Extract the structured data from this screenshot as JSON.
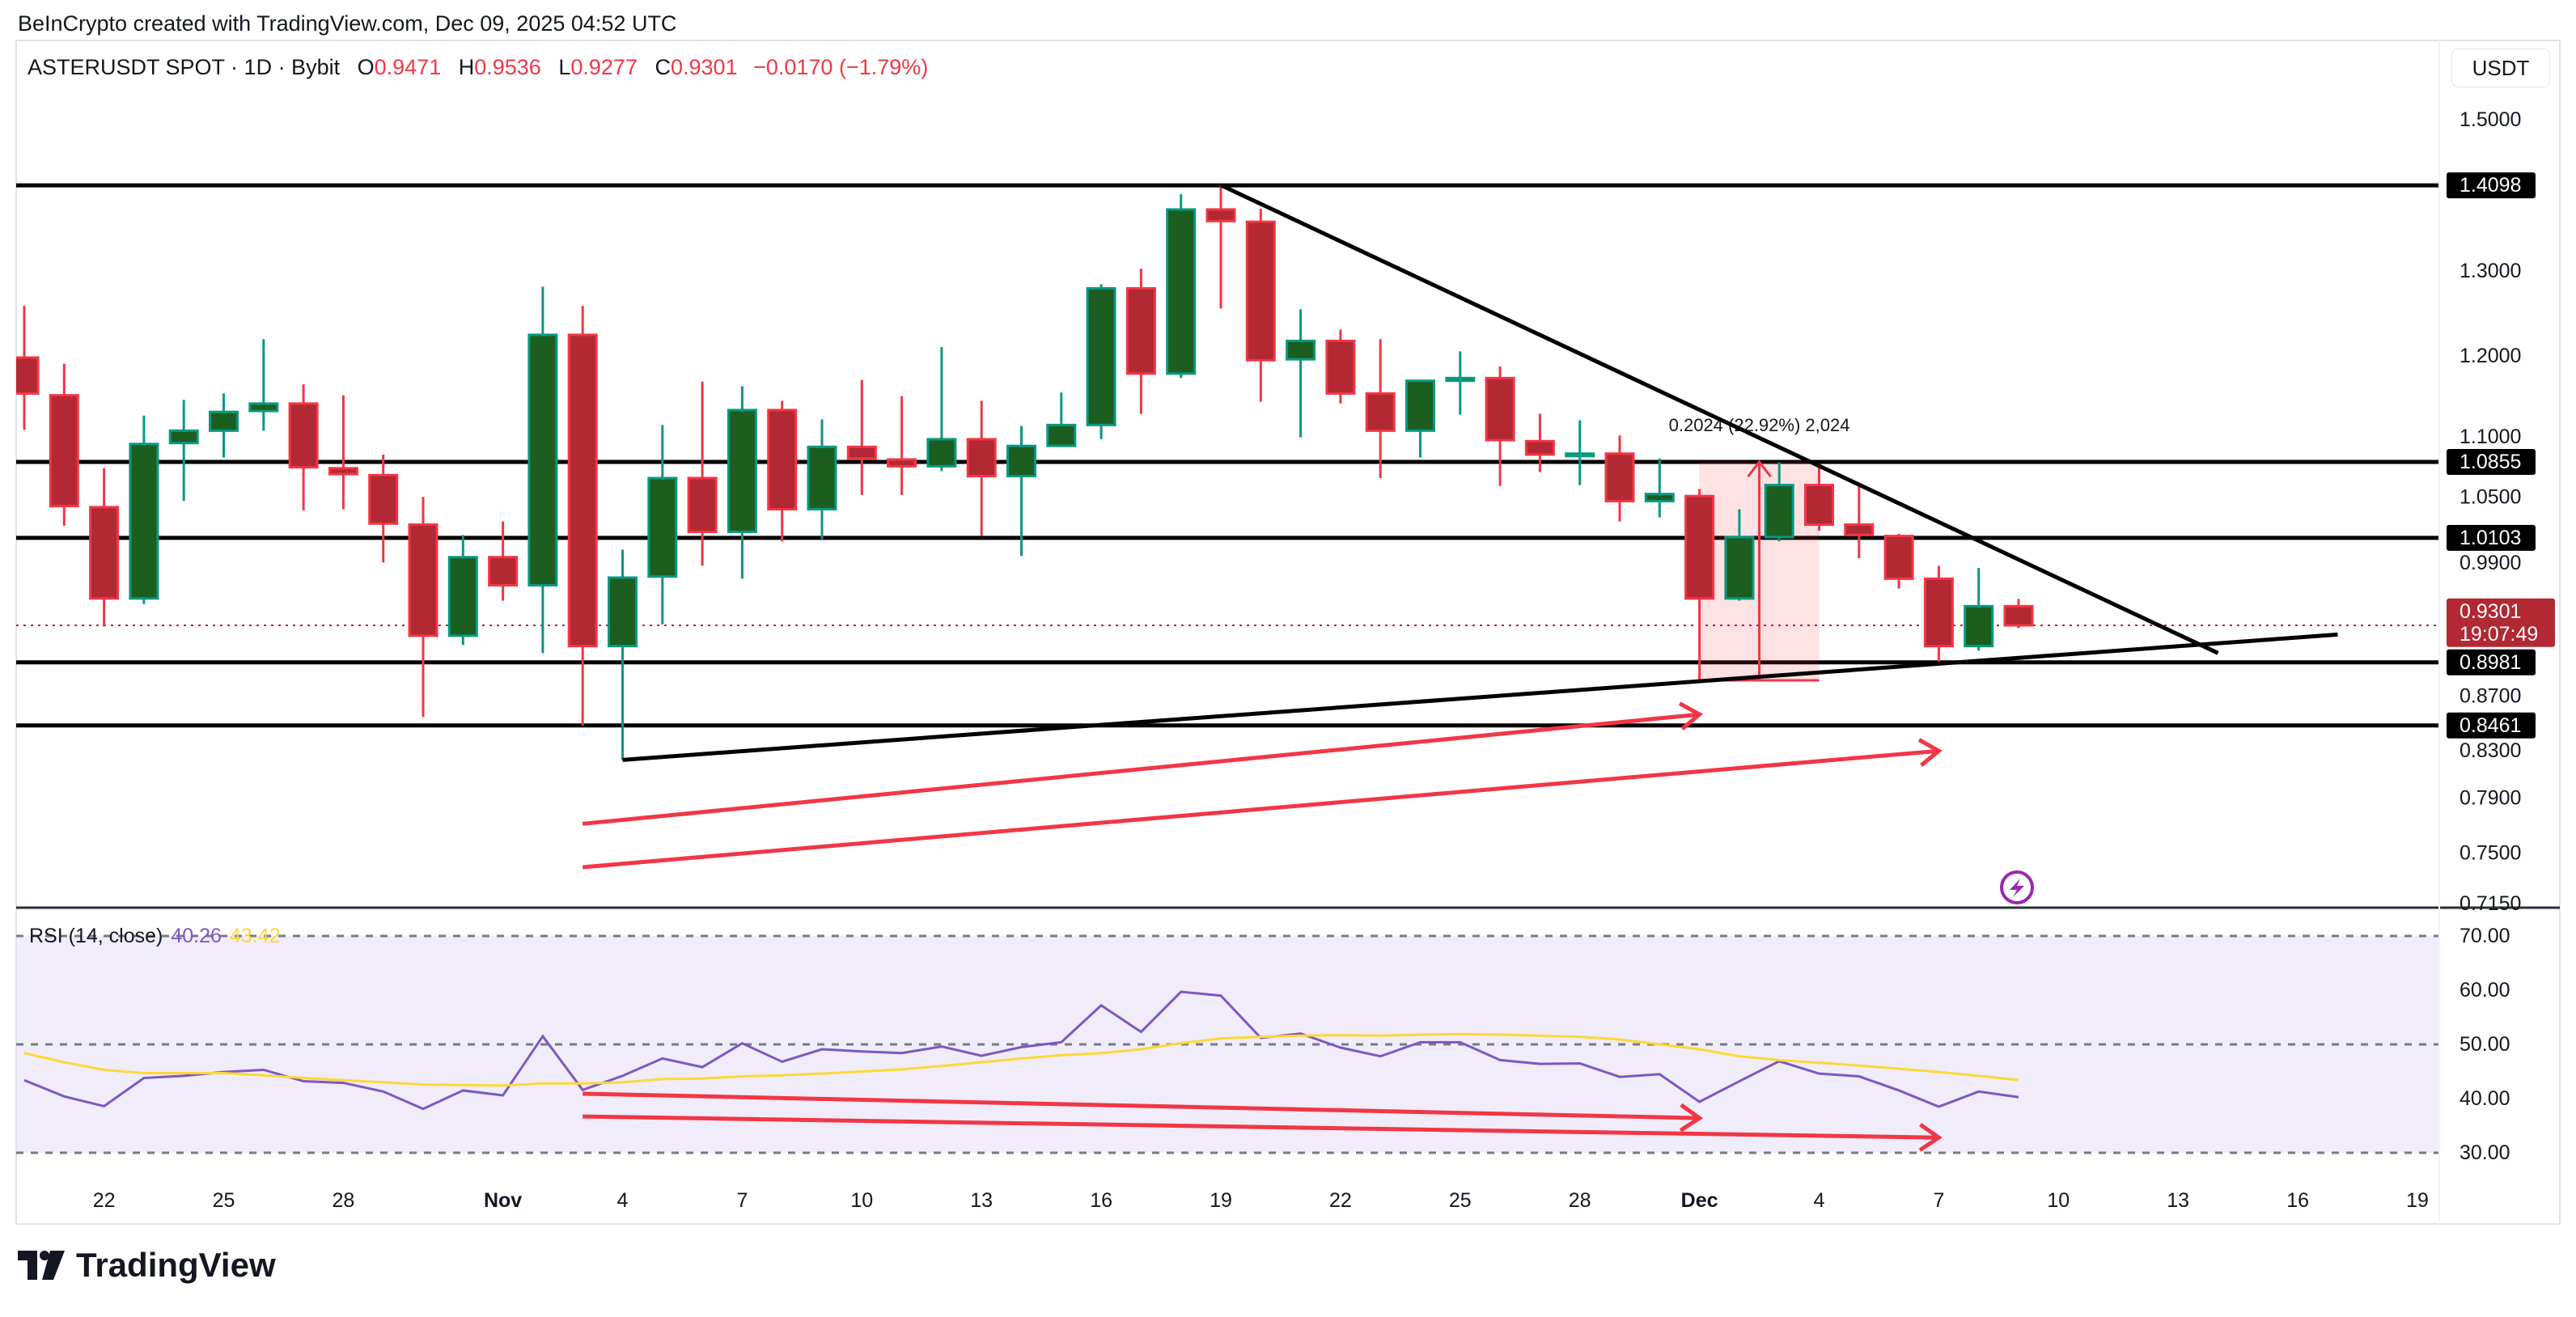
{
  "credit": "BeInCrypto created with TradingView.com, Dec 09, 2025 04:52 UTC",
  "legend": {
    "symbol": "ASTERUSDT SPOT · 1D · Bybit",
    "o_label": "O",
    "o": "0.9471",
    "h_label": "H",
    "h": "0.9536",
    "l_label": "L",
    "l": "0.9277",
    "c_label": "C",
    "c": "0.9301",
    "change": "−0.0170 (−1.79%)"
  },
  "currency_button": "USDT",
  "rsi_legend": {
    "label": "RSI (14, close)",
    "rsi": "40.26",
    "ma": "43.42"
  },
  "logo_text": "TradingView",
  "colors": {
    "up_body": "#1b5e20",
    "up_border": "#089981",
    "down_body": "#b22833",
    "down_border": "#f23645",
    "rsi": "#7e57c2",
    "rsi_ma": "#fdd835",
    "arrow": "#f23645",
    "rsi_band": "#f0ecf9",
    "alert_icon": "#9c27b0"
  },
  "icons": {
    "alert": "lightning-icon",
    "logo": "tradingview-logo-icon"
  },
  "chart_data": [
    {
      "type": "candlestick",
      "title": "ASTERUSDT SPOT · 1D · Bybit",
      "y_scale": "log",
      "ylim": [
        0.715,
        1.5
      ],
      "xlim": [
        "2025-10-20",
        "2025-12-21"
      ],
      "y_ticks": [
        "1.5000",
        "1.3000",
        "1.2000",
        "1.1000",
        "1.0500",
        "0.9900",
        "0.8700",
        "0.8300",
        "0.7900",
        "0.7500",
        "0.7150"
      ],
      "x_ticks": [
        {
          "date": "2025-10-22",
          "label": "22"
        },
        {
          "date": "2025-10-25",
          "label": "25"
        },
        {
          "date": "2025-10-28",
          "label": "28"
        },
        {
          "date": "2025-11-01",
          "label": "Nov"
        },
        {
          "date": "2025-11-04",
          "label": "4"
        },
        {
          "date": "2025-11-07",
          "label": "7"
        },
        {
          "date": "2025-11-10",
          "label": "10"
        },
        {
          "date": "2025-11-13",
          "label": "13"
        },
        {
          "date": "2025-11-16",
          "label": "16"
        },
        {
          "date": "2025-11-19",
          "label": "19"
        },
        {
          "date": "2025-11-22",
          "label": "22"
        },
        {
          "date": "2025-11-25",
          "label": "25"
        },
        {
          "date": "2025-11-28",
          "label": "28"
        },
        {
          "date": "2025-12-01",
          "label": "Dec"
        },
        {
          "date": "2025-12-04",
          "label": "4"
        },
        {
          "date": "2025-12-07",
          "label": "7"
        },
        {
          "date": "2025-12-10",
          "label": "10"
        },
        {
          "date": "2025-12-13",
          "label": "13"
        },
        {
          "date": "2025-12-16",
          "label": "16"
        },
        {
          "date": "2025-12-19",
          "label": "19"
        }
      ],
      "candles_columns": [
        "date",
        "open",
        "high",
        "low",
        "close"
      ],
      "candles": [
        [
          "2025-10-20",
          1.198,
          1.258,
          1.119,
          1.158
        ],
        [
          "2025-10-21",
          1.156,
          1.191,
          1.022,
          1.041
        ],
        [
          "2025-10-22",
          1.04,
          1.079,
          0.929,
          0.954
        ],
        [
          "2025-10-23",
          0.954,
          1.134,
          0.949,
          1.104
        ],
        [
          "2025-10-24",
          1.105,
          1.151,
          1.046,
          1.118
        ],
        [
          "2025-10-25",
          1.118,
          1.158,
          1.09,
          1.138
        ],
        [
          "2025-10-26",
          1.139,
          1.219,
          1.118,
          1.147
        ],
        [
          "2025-10-27",
          1.147,
          1.168,
          1.037,
          1.08
        ],
        [
          "2025-10-28",
          1.079,
          1.156,
          1.038,
          1.073
        ],
        [
          "2025-10-29",
          1.072,
          1.093,
          0.987,
          1.024
        ],
        [
          "2025-10-30",
          1.023,
          1.05,
          0.853,
          0.921
        ],
        [
          "2025-10-31",
          0.921,
          1.013,
          0.913,
          0.992
        ],
        [
          "2025-11-01",
          0.992,
          1.026,
          0.952,
          0.966
        ],
        [
          "2025-11-02",
          0.966,
          1.281,
          0.906,
          1.224
        ],
        [
          "2025-11-03",
          1.224,
          1.258,
          0.846,
          0.912
        ],
        [
          "2025-11-04",
          0.912,
          0.999,
          0.819,
          0.973
        ],
        [
          "2025-11-05",
          0.974,
          1.124,
          0.931,
          1.069
        ],
        [
          "2025-11-06",
          1.069,
          1.171,
          0.984,
          1.016
        ],
        [
          "2025-11-07",
          1.016,
          1.166,
          0.972,
          1.14
        ],
        [
          "2025-11-08",
          1.14,
          1.15,
          1.007,
          1.038
        ],
        [
          "2025-11-09",
          1.038,
          1.13,
          1.009,
          1.101
        ],
        [
          "2025-11-10",
          1.101,
          1.173,
          1.052,
          1.089
        ],
        [
          "2025-11-11",
          1.088,
          1.155,
          1.052,
          1.081
        ],
        [
          "2025-11-12",
          1.081,
          1.21,
          1.076,
          1.109
        ],
        [
          "2025-11-13",
          1.109,
          1.15,
          1.012,
          1.071
        ],
        [
          "2025-11-14",
          1.071,
          1.123,
          0.993,
          1.102
        ],
        [
          "2025-11-15",
          1.102,
          1.159,
          1.101,
          1.124
        ],
        [
          "2025-11-16",
          1.124,
          1.284,
          1.109,
          1.279
        ],
        [
          "2025-11-17",
          1.279,
          1.303,
          1.136,
          1.18
        ],
        [
          "2025-11-18",
          1.18,
          1.398,
          1.175,
          1.378
        ],
        [
          "2025-11-19",
          1.378,
          1.4098,
          1.255,
          1.363
        ],
        [
          "2025-11-20",
          1.362,
          1.379,
          1.149,
          1.195
        ],
        [
          "2025-11-21",
          1.196,
          1.254,
          1.111,
          1.217
        ],
        [
          "2025-11-22",
          1.217,
          1.23,
          1.147,
          1.158
        ],
        [
          "2025-11-23",
          1.158,
          1.219,
          1.069,
          1.118
        ],
        [
          "2025-11-24",
          1.118,
          1.173,
          1.09,
          1.172
        ],
        [
          "2025-11-25",
          1.172,
          1.205,
          1.135,
          1.175
        ],
        [
          "2025-11-26",
          1.175,
          1.188,
          1.061,
          1.108
        ],
        [
          "2025-11-27",
          1.107,
          1.136,
          1.075,
          1.093
        ],
        [
          "2025-11-28",
          1.093,
          1.129,
          1.062,
          1.094
        ],
        [
          "2025-11-29",
          1.094,
          1.113,
          1.026,
          1.046
        ],
        [
          "2025-11-30",
          1.046,
          1.089,
          1.03,
          1.053
        ],
        [
          "2025-12-01",
          1.051,
          1.058,
          0.883,
          0.954
        ],
        [
          "2025-12-02",
          0.954,
          1.038,
          0.952,
          1.011
        ],
        [
          "2025-12-03",
          1.011,
          1.085,
          1.007,
          1.062
        ],
        [
          "2025-12-04",
          1.062,
          1.082,
          1.017,
          1.023
        ],
        [
          "2025-12-05",
          1.023,
          1.061,
          0.991,
          1.013
        ],
        [
          "2025-12-06",
          1.012,
          1.014,
          0.963,
          0.972
        ],
        [
          "2025-12-07",
          0.972,
          0.984,
          0.895,
          0.912
        ],
        [
          "2025-12-08",
          0.912,
          0.982,
          0.908,
          0.9471
        ],
        [
          "2025-12-09",
          0.9471,
          0.9536,
          0.9277,
          0.9301
        ]
      ],
      "last_price": {
        "value": "0.9301",
        "countdown": "19:07:49"
      },
      "horizontal_levels": [
        "1.4098",
        "1.0855",
        "1.0103",
        "0.8981",
        "0.8461"
      ],
      "trendlines": [
        {
          "from": [
            "2025-11-19",
            1.41
          ],
          "to": [
            "2025-12-14",
            0.906
          ]
        },
        {
          "from": [
            "2025-11-04",
            0.819
          ],
          "to": [
            "2025-12-17",
            0.922
          ]
        }
      ],
      "arrows": [
        {
          "from": [
            "2025-11-03",
            0.771
          ],
          "to": [
            "2025-12-01",
            0.855
          ]
        },
        {
          "from": [
            "2025-11-03",
            0.74
          ],
          "to": [
            "2025-12-07",
            0.826
          ]
        }
      ],
      "price_range": {
        "from_date": "2025-12-01",
        "to_date": "2025-12-04",
        "low": 0.883,
        "high": 1.0854,
        "label": "0.2024 (22.92%) 2,024"
      }
    },
    {
      "type": "line",
      "title": "RSI (14, close)",
      "ylim": [
        30,
        70
      ],
      "y_ticks": [
        "70.00",
        "60.00",
        "50.00",
        "40.00",
        "30.00"
      ],
      "band": [
        30,
        70
      ],
      "reference_lines": [
        70,
        50,
        30
      ],
      "x_start": "2025-10-20",
      "series": [
        {
          "key": "rsi",
          "values": [
            43.4,
            40.4,
            38.6,
            43.8,
            44.2,
            44.9,
            45.3,
            43.2,
            42.9,
            41.3,
            38.1,
            41.5,
            40.6,
            51.5,
            41.6,
            44.2,
            47.4,
            45.8,
            50.2,
            46.8,
            49.1,
            48.7,
            48.4,
            49.6,
            47.9,
            49.5,
            50.4,
            57.2,
            52.3,
            59.7,
            59.0,
            51.2,
            52.0,
            49.4,
            47.8,
            50.4,
            50.4,
            47.1,
            46.4,
            46.5,
            44.0,
            44.5,
            39.4,
            43.2,
            46.9,
            44.6,
            44.1,
            41.5,
            38.5,
            41.3,
            40.26
          ]
        },
        {
          "key": "rsi_ma",
          "values": [
            48.4,
            46.7,
            45.3,
            44.7,
            44.7,
            44.7,
            44.3,
            43.8,
            43.4,
            43.0,
            42.6,
            42.5,
            42.4,
            42.8,
            42.8,
            43.0,
            43.6,
            43.7,
            44.1,
            44.3,
            44.6,
            45.0,
            45.4,
            46.0,
            46.7,
            47.4,
            48.0,
            48.4,
            49.1,
            50.2,
            51.1,
            51.4,
            51.6,
            51.7,
            51.6,
            51.8,
            51.9,
            51.8,
            51.6,
            51.4,
            50.9,
            50.0,
            49.1,
            47.8,
            47.1,
            46.6,
            46.1,
            45.5,
            44.9,
            44.2,
            43.42
          ]
        }
      ],
      "arrows": [
        {
          "from": [
            "2025-11-03",
            40.9
          ],
          "to": [
            "2025-12-01",
            36.4
          ]
        },
        {
          "from": [
            "2025-11-03",
            36.7
          ],
          "to": [
            "2025-12-07",
            32.8
          ]
        }
      ]
    }
  ]
}
